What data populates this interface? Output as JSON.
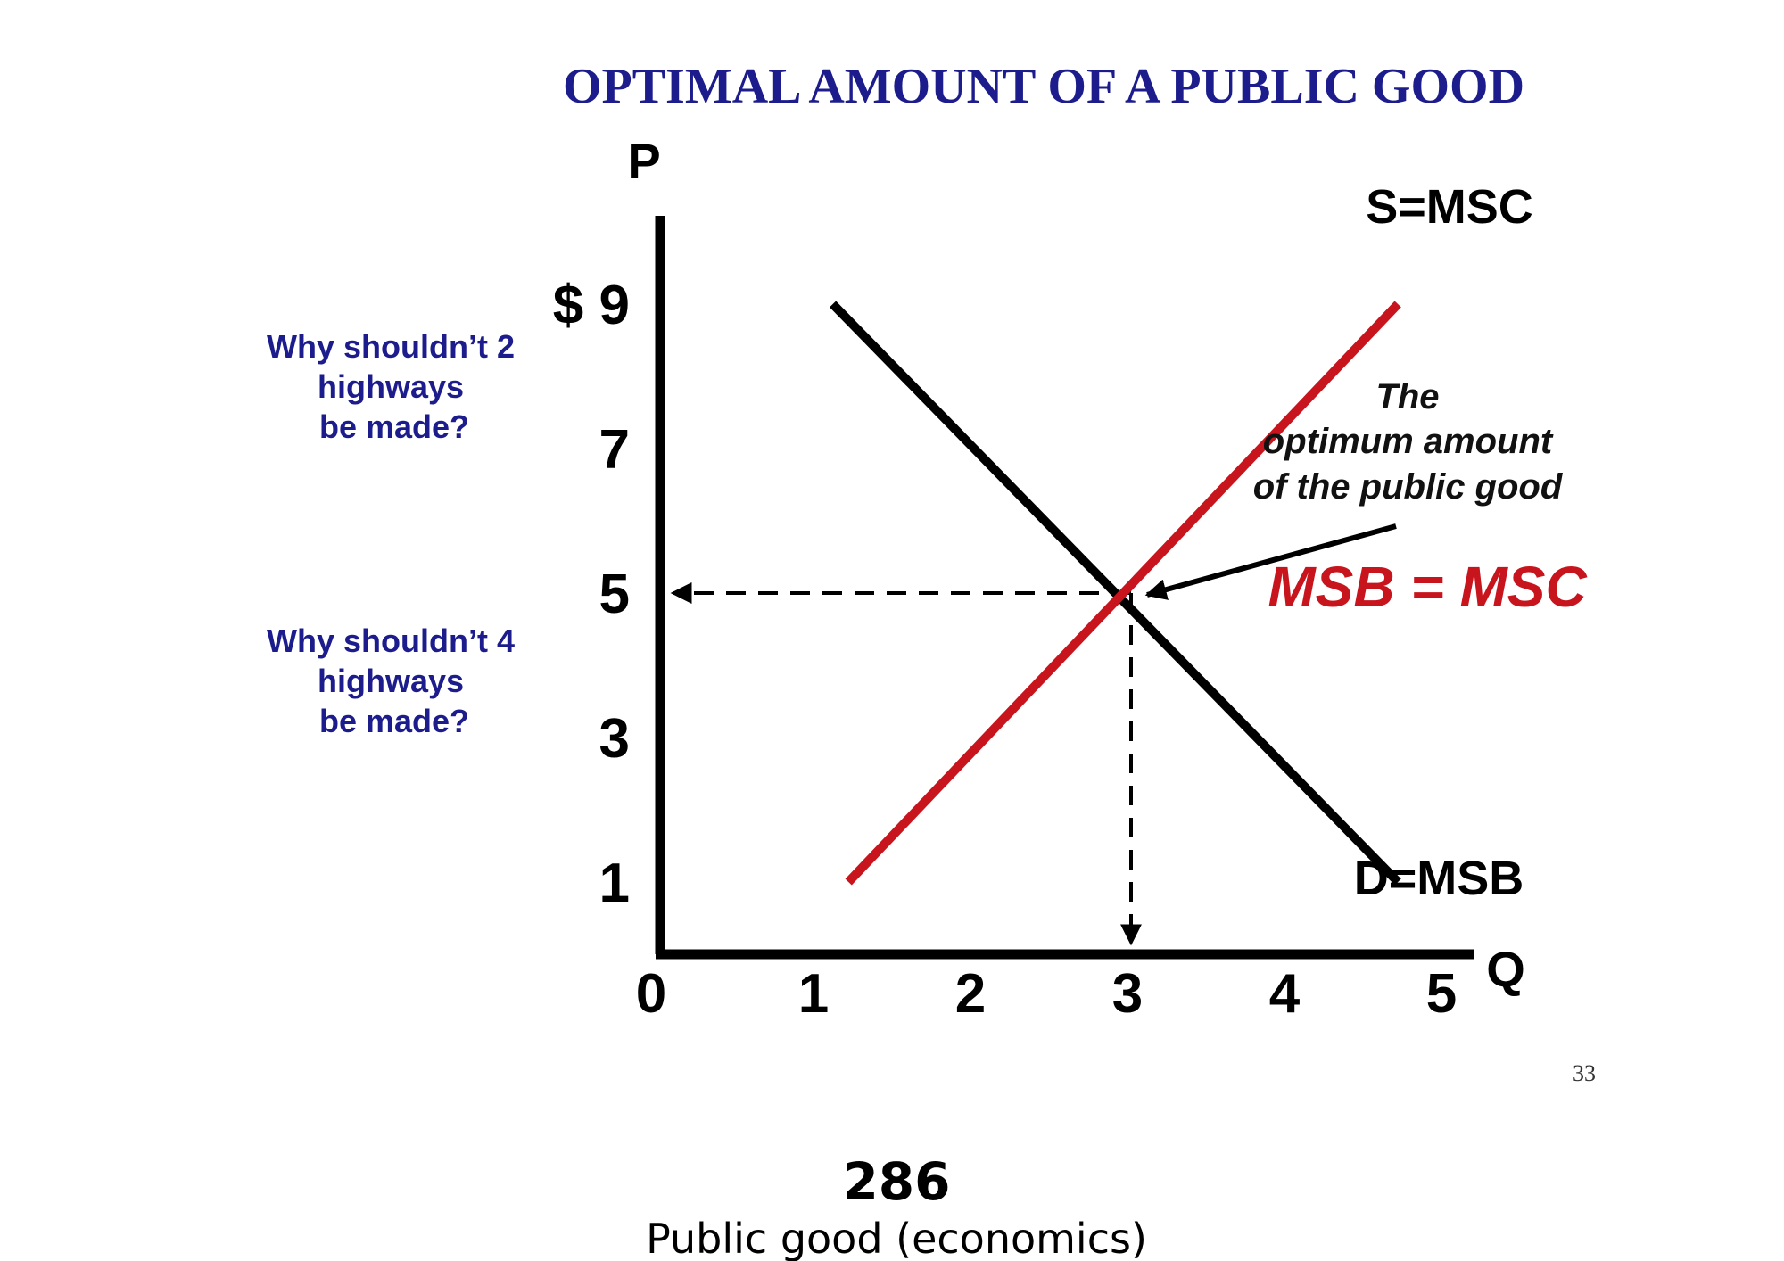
{
  "chart_data": {
    "type": "line",
    "title": "OPTIMAL AMOUNT OF A PUBLIC GOOD",
    "ylabel": "P",
    "xlabel": "Q",
    "y_tick_labels": [
      "$ 9",
      "7",
      "5",
      "3",
      "1"
    ],
    "y_tick_values": [
      9,
      7,
      5,
      3,
      1
    ],
    "x_tick_labels": [
      "0",
      "1",
      "2",
      "3",
      "4",
      "5"
    ],
    "x_tick_values": [
      0,
      1,
      2,
      3,
      4,
      5
    ],
    "xlim": [
      0,
      5.2
    ],
    "ylim": [
      0,
      10
    ],
    "series": [
      {
        "name": "D=MSB",
        "color": "#000000",
        "points": [
          {
            "x": 1.1,
            "y": 9.0
          },
          {
            "x": 4.7,
            "y": 1.0
          }
        ]
      },
      {
        "name": "S=MSC",
        "color": "#c8141c",
        "points": [
          {
            "x": 1.2,
            "y": 1.0
          },
          {
            "x": 4.7,
            "y": 9.0
          }
        ]
      }
    ],
    "equilibrium": {
      "x": 3,
      "y": 5
    },
    "annotation": {
      "lines": [
        "The",
        "optimum amount",
        "of the public good"
      ],
      "equation": "MSB = MSC",
      "equation_color": "#c8141c"
    },
    "side_questions": [
      {
        "lines": [
          "Why shouldn’t 2",
          "highways",
          "be made?"
        ]
      },
      {
        "lines": [
          "Why shouldn’t 4",
          "highways",
          "be made?"
        ]
      }
    ]
  },
  "slide_number": "33",
  "caption": {
    "number": "286",
    "text": "Public good (economics)"
  },
  "colors": {
    "title": "#1c1c8c",
    "question": "#1c1c8c",
    "supply": "#c8141c",
    "demand": "#000000"
  }
}
